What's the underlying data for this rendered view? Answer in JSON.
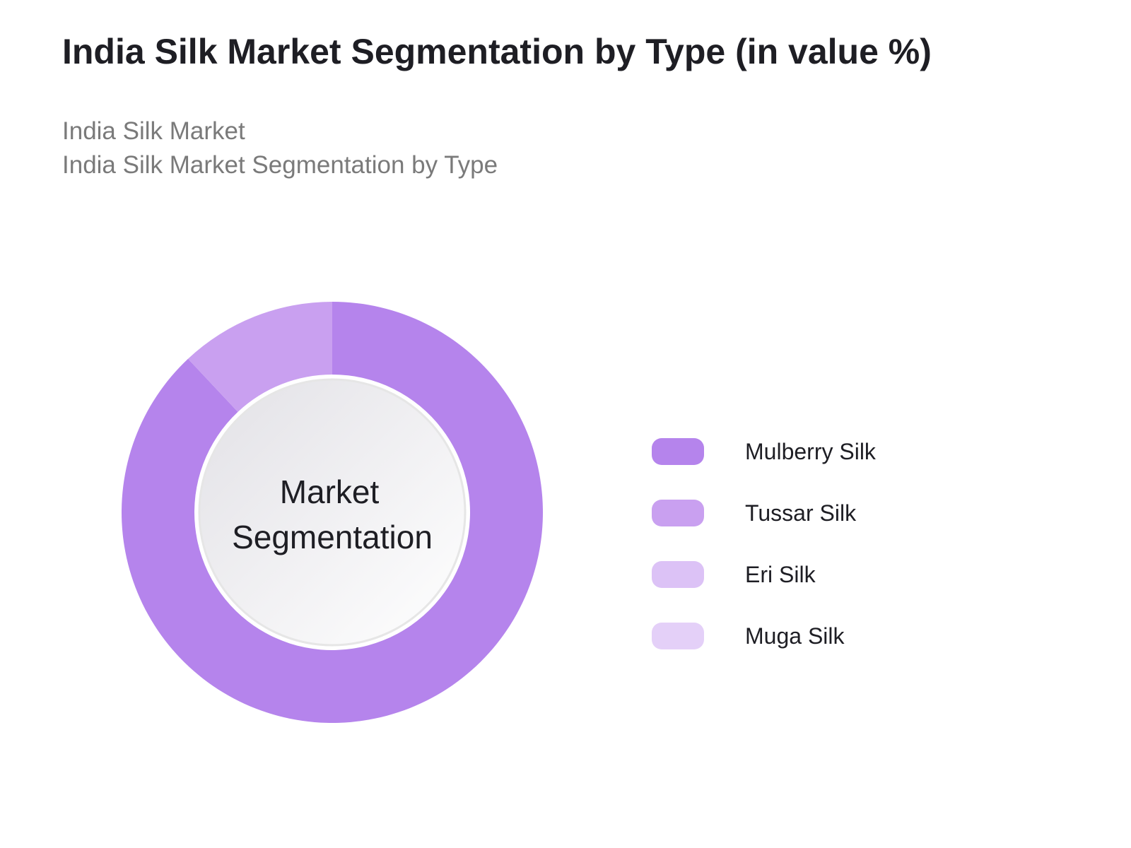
{
  "header": {
    "title": "India Silk Market Segmentation by Type (in value %)",
    "subtitle_1": "India Silk Market",
    "subtitle_2": "India Silk Market Segmentation by Type"
  },
  "chart_data": {
    "type": "pie",
    "variant": "donut",
    "center_label": [
      "Market",
      "Segmentation"
    ],
    "legend_position": "right",
    "series": [
      {
        "name": "Mulberry Silk",
        "value": 88,
        "color": "#b584ec"
      },
      {
        "name": "Tussar Silk",
        "value": 12,
        "color": "#c9a0f0"
      },
      {
        "name": "Eri Silk",
        "value": 0,
        "color": "#dcc2f6"
      },
      {
        "name": "Muga Silk",
        "value": 0,
        "color": "#e4d0f8"
      }
    ]
  }
}
